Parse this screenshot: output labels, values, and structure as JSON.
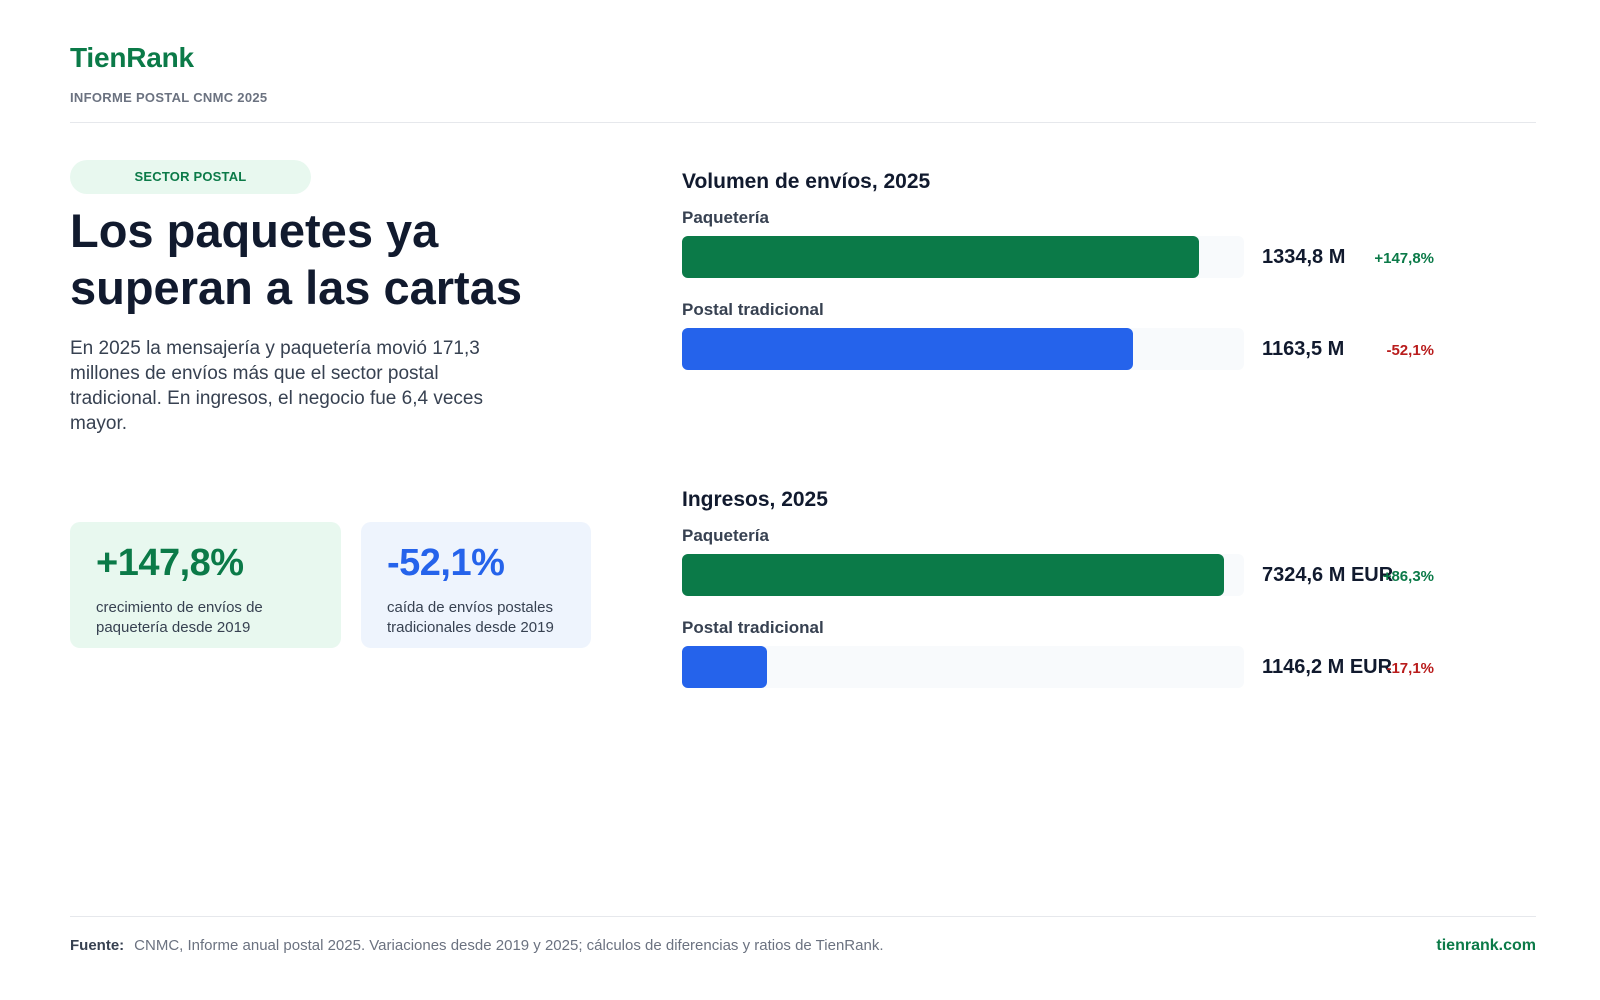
{
  "header": {
    "brand": "TienRank",
    "report": "INFORME POSTAL CNMC 2025"
  },
  "intro": {
    "tag": "SECTOR POSTAL",
    "headline": "Los paquetes ya superan a las cartas",
    "lede": "En 2025 la mensajería y paquetería movió 171,3 millones de envíos más que el sector postal tradicional. En ingresos, el negocio fue 6,4 veces mayor."
  },
  "cards": [
    {
      "value": "+147,8%",
      "desc": "crecimiento de envíos de paquetería desde 2019"
    },
    {
      "value": "-52,1%",
      "desc": "caída de envíos postales tradicionales desde 2019"
    }
  ],
  "chart_data": [
    {
      "type": "bar",
      "orientation": "horizontal",
      "title": "Volumen de envíos, 2025",
      "categories": [
        "Paquetería",
        "Postal tradicional"
      ],
      "values": [
        1334.8,
        1163.5
      ],
      "value_labels": [
        "1334,8 M",
        "1163,5 M"
      ],
      "change_labels": [
        "+147,8%",
        "-52,1%"
      ],
      "xlim": [
        0,
        1450
      ],
      "colors": [
        "#0b7a48",
        "#2563eb"
      ],
      "grid": false
    },
    {
      "type": "bar",
      "orientation": "horizontal",
      "title": "Ingresos, 2025",
      "categories": [
        "Paquetería",
        "Postal tradicional"
      ],
      "values": [
        7324.6,
        1146.2
      ],
      "value_labels": [
        "7324,6 M EUR",
        "1146,2 M EUR"
      ],
      "change_labels": [
        "+86,3%",
        "-17,1%"
      ],
      "xlim": [
        0,
        7600
      ],
      "colors": [
        "#0b7a48",
        "#2563eb"
      ],
      "grid": false
    }
  ],
  "footer": {
    "source_label": "Fuente:",
    "source_text": "CNMC, Informe anual postal 2025. Variaciones desde 2019 y 2025; cálculos de diferencias y ratios de TienRank.",
    "site": "tienrank.com"
  }
}
